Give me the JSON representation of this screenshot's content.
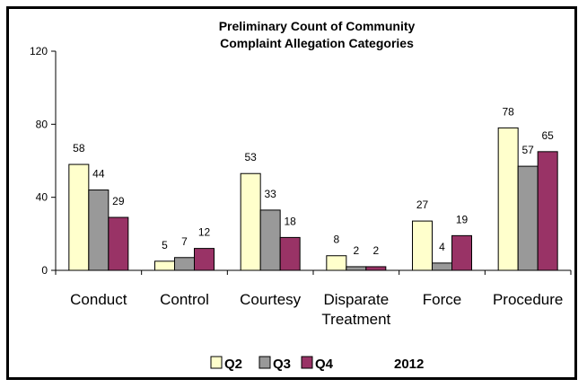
{
  "chart_data": {
    "type": "bar",
    "title_lines": [
      "Preliminary Count of Community",
      "Complaint Allegation Categories"
    ],
    "categories": [
      [
        "Conduct"
      ],
      [
        "Control"
      ],
      [
        "Courtesy"
      ],
      [
        "Disparate",
        "Treatment"
      ],
      [
        "Force"
      ],
      [
        "Procedure"
      ]
    ],
    "series": [
      {
        "name": "Q2",
        "color": "#ffffcc",
        "values": [
          58,
          5,
          53,
          8,
          27,
          78
        ]
      },
      {
        "name": "Q3",
        "color": "#999999",
        "values": [
          44,
          7,
          33,
          2,
          4,
          57
        ]
      },
      {
        "name": "Q4",
        "color": "#993366",
        "values": [
          29,
          12,
          18,
          2,
          19,
          65
        ]
      }
    ],
    "yticks": [
      0,
      40,
      80,
      120
    ],
    "ylim": [
      0,
      120
    ],
    "legend_position": "bottom",
    "legend_note": "2012",
    "grid": false
  }
}
